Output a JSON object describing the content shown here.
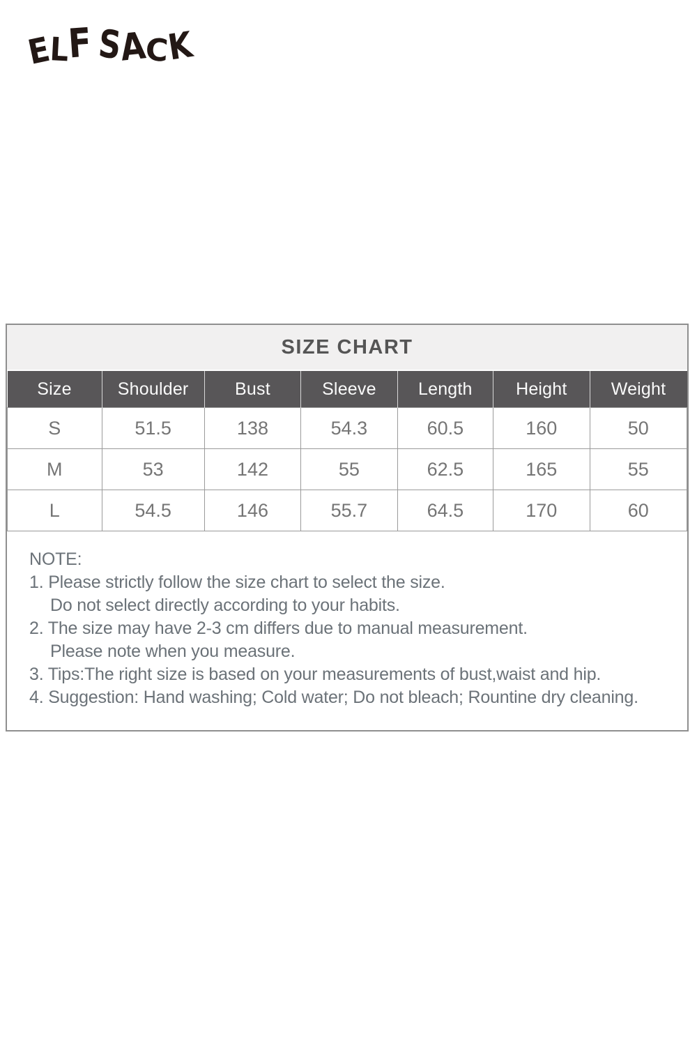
{
  "brand": {
    "logo_text": "ELF SACK"
  },
  "chart_data": {
    "type": "table",
    "title": "SIZE CHART",
    "columns": [
      "Size",
      "Shoulder",
      "Bust",
      "Sleeve",
      "Length",
      "Height",
      "Weight"
    ],
    "rows": [
      [
        "S",
        51.5,
        138,
        54.3,
        60.5,
        160,
        50
      ],
      [
        "M",
        53,
        142,
        55,
        62.5,
        165,
        55
      ],
      [
        "L",
        54.5,
        146,
        55.7,
        64.5,
        170,
        60
      ]
    ]
  },
  "note": {
    "title": "NOTE:",
    "lines": [
      "1. Please strictly follow the size chart to select the size.",
      "Do not select directly according to your habits.",
      "2. The size may have 2-3 cm differs due to manual measurement.",
      "Please note when you measure.",
      "3. Tips:The right size is based on your measurements of bust,waist and hip.",
      "4. Suggestion: Hand washing; Cold water; Do not bleach; Rountine dry cleaning."
    ]
  },
  "colors": {
    "logo": "#231815",
    "title-band-bg": "#f1f0f0",
    "title-text": "#555555",
    "header-bg": "#585658",
    "header-text": "#fafafa",
    "cell-text": "#757575",
    "note-text": "#6b7278",
    "border": "#8f8f8f"
  }
}
